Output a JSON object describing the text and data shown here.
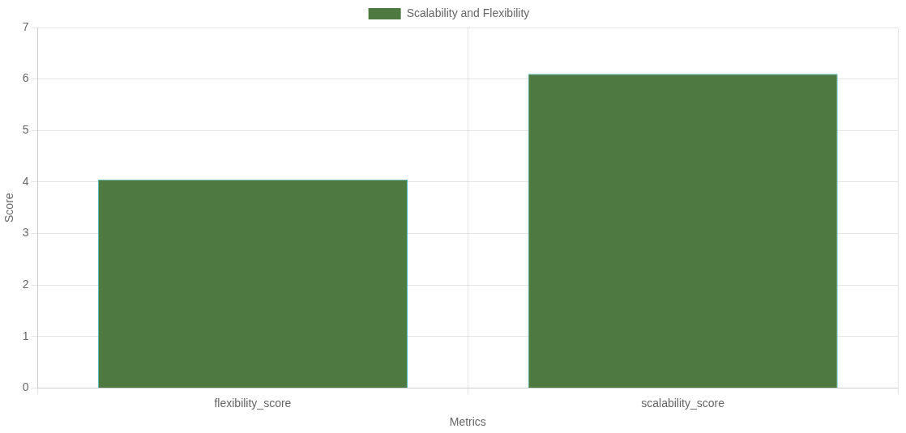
{
  "chart_data": {
    "type": "bar",
    "xlabel": "Metrics",
    "ylabel": "Score",
    "categories": [
      "flexibility_score",
      "scalability_score"
    ],
    "series": [
      {
        "name": "Scalability and Flexibility",
        "color": "#4e7a42",
        "values": [
          4.05,
          6.1
        ]
      }
    ],
    "ylim": [
      0,
      7
    ],
    "yticks": [
      0,
      1,
      2,
      3,
      4,
      5,
      6,
      7
    ],
    "grid": true,
    "legend": "top"
  }
}
